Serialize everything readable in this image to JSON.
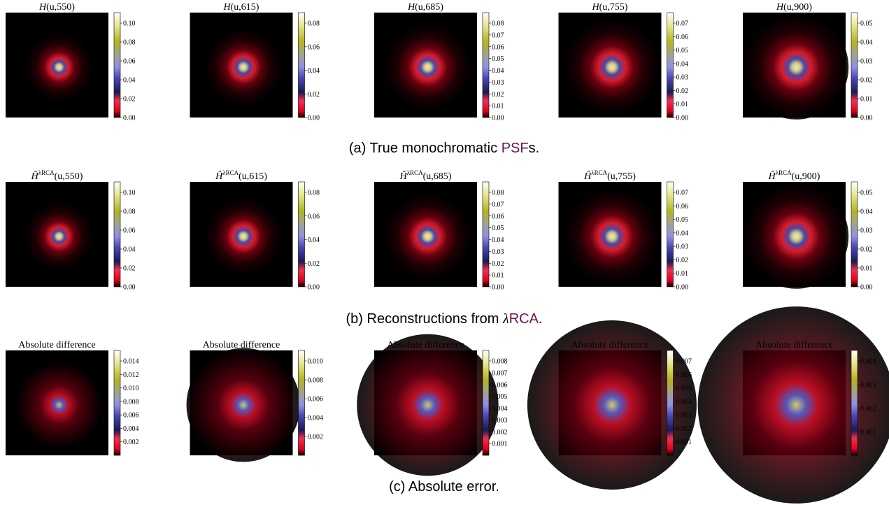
{
  "rows": [
    {
      "caption": [
        "(a) True monochromatic ",
        "PSF",
        "s."
      ],
      "panels": [
        {
          "symbol": "H",
          "title": "(u,550)",
          "ticks": [
            "0.00",
            "0.02",
            "0.04",
            "0.06",
            "0.08",
            "0.10"
          ]
        },
        {
          "symbol": "H",
          "title": "(u,615)",
          "ticks": [
            "0.00",
            "0.02",
            "0.04",
            "0.06",
            "0.08"
          ]
        },
        {
          "symbol": "H",
          "title": "(u,685)",
          "ticks": [
            "0.00",
            "0.01",
            "0.02",
            "0.03",
            "0.04",
            "0.05",
            "0.06",
            "0.07",
            "0.08"
          ]
        },
        {
          "symbol": "H",
          "title": "(u,755)",
          "ticks": [
            "0.00",
            "0.01",
            "0.02",
            "0.03",
            "0.04",
            "0.05",
            "0.06",
            "0.07"
          ]
        },
        {
          "symbol": "H",
          "title": "(u,900)",
          "ticks": [
            "0.00",
            "0.01",
            "0.02",
            "0.03",
            "0.04",
            "0.05"
          ]
        }
      ]
    },
    {
      "caption": [
        "(b) Reconstructions from ",
        "λ",
        "RCA",
        "."
      ],
      "panels": [
        {
          "symbol": "Ĥ",
          "sup": "λRCA",
          "title": "(u,550)",
          "ticks": [
            "0.00",
            "0.02",
            "0.04",
            "0.06",
            "0.08",
            "0.10"
          ]
        },
        {
          "symbol": "Ĥ",
          "sup": "λRCA",
          "title": "(u,615)",
          "ticks": [
            "0.00",
            "0.02",
            "0.04",
            "0.06",
            "0.08"
          ]
        },
        {
          "symbol": "Ĥ",
          "sup": "λRCA",
          "title": "(u,685)",
          "ticks": [
            "0.00",
            "0.01",
            "0.02",
            "0.03",
            "0.04",
            "0.05",
            "0.06",
            "0.07",
            "0.08"
          ]
        },
        {
          "symbol": "Ĥ",
          "sup": "λRCA",
          "title": "(u,755)",
          "ticks": [
            "0.00",
            "0.01",
            "0.02",
            "0.03",
            "0.04",
            "0.05",
            "0.06",
            "0.07"
          ]
        },
        {
          "symbol": "Ĥ",
          "sup": "λRCA",
          "title": "(u,900)",
          "ticks": [
            "0.00",
            "0.01",
            "0.02",
            "0.03",
            "0.04",
            "0.05"
          ]
        }
      ]
    },
    {
      "caption": [
        "(c) Absolute error."
      ],
      "panels": [
        {
          "title": "Absolute difference",
          "ticks": [
            "0.002",
            "0.004",
            "0.006",
            "0.008",
            "0.010",
            "0.012",
            "0.014"
          ]
        },
        {
          "title": "Absolute difference",
          "ticks": [
            "0.002",
            "0.004",
            "0.006",
            "0.008",
            "0.010"
          ]
        },
        {
          "title": "Absolute difference",
          "ticks": [
            "0.001",
            "0.002",
            "0.003",
            "0.004",
            "0.005",
            "0.006",
            "0.007",
            "0.008"
          ]
        },
        {
          "title": "Absolute difference",
          "ticks": [
            "0.001",
            "0.002",
            "0.003",
            "0.004",
            "0.005",
            "0.006",
            "0.007"
          ]
        },
        {
          "title": "Absolute difference",
          "ticks": [
            "0.001",
            "0.002",
            "0.003",
            "0.004"
          ]
        }
      ]
    }
  ]
}
